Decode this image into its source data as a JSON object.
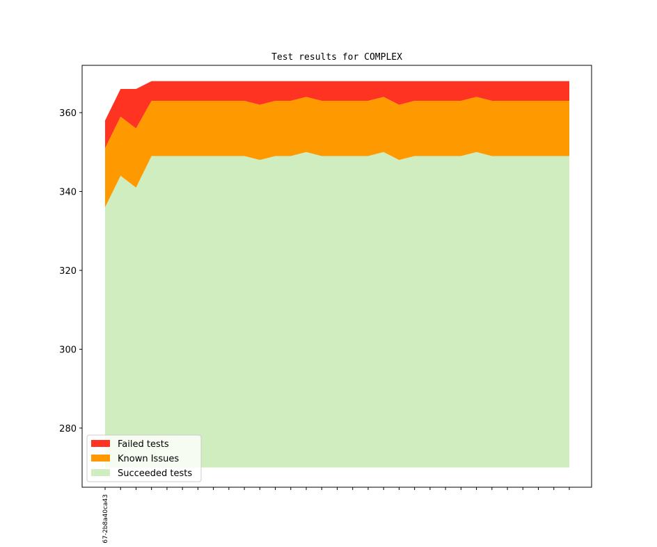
{
  "chart_data": {
    "type": "area",
    "stacked": true,
    "title": "Test results for COMPLEX",
    "xlabel": "",
    "ylabel": "",
    "ylim": [
      265,
      372
    ],
    "yticks": [
      280,
      300,
      320,
      340,
      360
    ],
    "x_count": 31,
    "x_tick_labels": [
      {
        "index": 0,
        "label": "67-2b8a40ca43"
      }
    ],
    "baseline": 270,
    "series": [
      {
        "name": "Succeeded tests",
        "color": "#cfedbf",
        "values": [
          336,
          344,
          341,
          349,
          349,
          349,
          349,
          349,
          349,
          349,
          348,
          349,
          349,
          350,
          349,
          349,
          349,
          349,
          350,
          348,
          349,
          349,
          349,
          349,
          350,
          349,
          349,
          349,
          349,
          349,
          349
        ]
      },
      {
        "name": "Known Issues",
        "color": "#ff9900",
        "values": [
          351,
          359,
          356,
          363,
          363,
          363,
          363,
          363,
          363,
          363,
          362,
          363,
          363,
          364,
          363,
          363,
          363,
          363,
          364,
          362,
          363,
          363,
          363,
          363,
          364,
          363,
          363,
          363,
          363,
          363,
          363
        ]
      },
      {
        "name": "Failed tests",
        "color": "#ff3322",
        "values": [
          358,
          366,
          366,
          368,
          368,
          368,
          368,
          368,
          368,
          368,
          368,
          368,
          368,
          368,
          368,
          368,
          368,
          368,
          368,
          368,
          368,
          368,
          368,
          368,
          368,
          368,
          368,
          368,
          368,
          368,
          368
        ]
      }
    ],
    "legend": {
      "placement": "lower-left",
      "entries": [
        "Failed tests",
        "Known Issues",
        "Succeeded tests"
      ]
    },
    "grid": false
  }
}
